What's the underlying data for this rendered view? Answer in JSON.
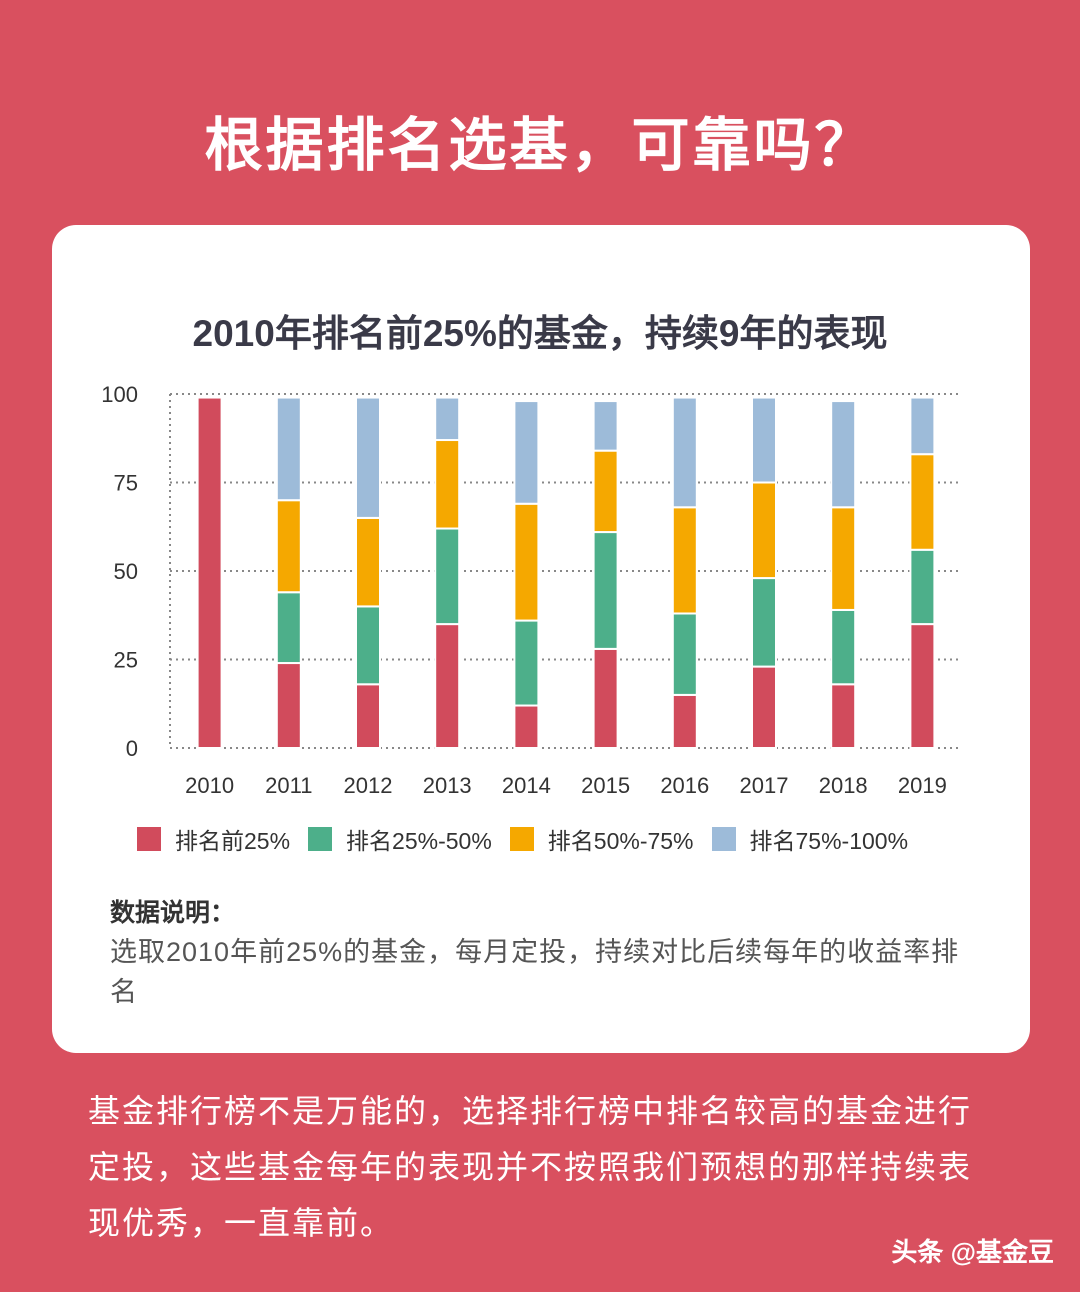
{
  "header": {
    "title": "根据排名选基，可靠吗？"
  },
  "chart_data": {
    "type": "bar",
    "stacked": true,
    "title": "2010年排名前25%的基金，持续9年的表现",
    "categories": [
      "2010",
      "2011",
      "2012",
      "2013",
      "2014",
      "2015",
      "2016",
      "2017",
      "2018",
      "2019"
    ],
    "ylim": [
      0,
      100
    ],
    "yticks": [
      0,
      25,
      50,
      75,
      100
    ],
    "grid": true,
    "legend_position": "bottom",
    "series": [
      {
        "name": "排名前25%",
        "color": "#d14b5c",
        "values": [
          99,
          24,
          18,
          35,
          12,
          28,
          15,
          23,
          18,
          35
        ]
      },
      {
        "name": "排名25%-50%",
        "color": "#4daf8a",
        "values": [
          0,
          20,
          22,
          27,
          24,
          33,
          23,
          25,
          21,
          21
        ]
      },
      {
        "name": "排名50%-75%",
        "color": "#f5a800",
        "values": [
          0,
          26,
          25,
          25,
          33,
          23,
          30,
          27,
          29,
          27
        ]
      },
      {
        "name": "排名75%-100%",
        "color": "#9dbbd9",
        "values": [
          0,
          29,
          34,
          12,
          29,
          14,
          31,
          24,
          30,
          16
        ]
      }
    ]
  },
  "note": {
    "title": "数据说明：",
    "body": "选取2010年前25%的基金，每月定投，持续对比后续每年的收益率排名"
  },
  "summary": "基金排行榜不是万能的，选择排行榜中排名较高的基金进行定投，这些基金每年的表现并不按照我们预想的那样持续表现优秀，一直靠前。",
  "watermark": "头条 @基金豆"
}
